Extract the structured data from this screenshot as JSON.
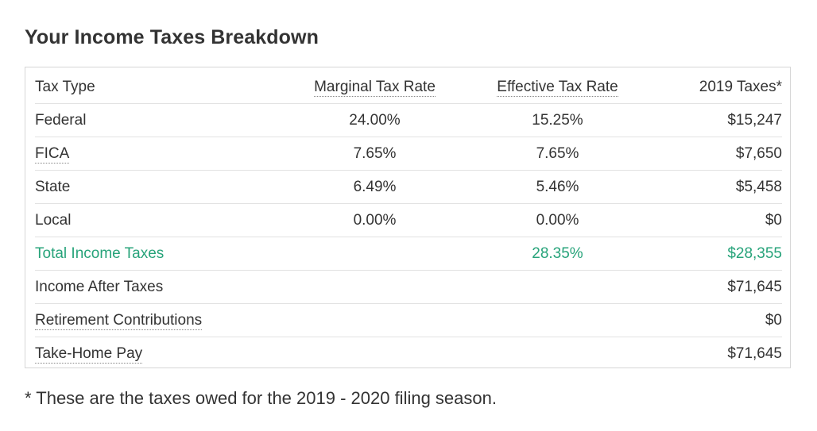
{
  "title": "Your Income Taxes Breakdown",
  "table": {
    "headers": {
      "tax_type": "Tax Type",
      "marginal": "Marginal Tax Rate",
      "effective": "Effective Tax Rate",
      "taxes": "2019 Taxes*"
    },
    "rows": [
      {
        "type": "Federal",
        "marginal": "24.00%",
        "effective": "15.25%",
        "taxes": "$15,247"
      },
      {
        "type": "FICA",
        "marginal": "7.65%",
        "effective": "7.65%",
        "taxes": "$7,650"
      },
      {
        "type": "State",
        "marginal": "6.49%",
        "effective": "5.46%",
        "taxes": "$5,458"
      },
      {
        "type": "Local",
        "marginal": "0.00%",
        "effective": "0.00%",
        "taxes": "$0"
      }
    ],
    "total": {
      "type": "Total Income Taxes",
      "effective": "28.35%",
      "taxes": "$28,355"
    },
    "after_taxes": {
      "type": "Income After Taxes",
      "taxes": "$71,645"
    },
    "retirement": {
      "type": "Retirement Contributions",
      "taxes": "$0"
    },
    "take_home": {
      "type": "Take-Home Pay",
      "taxes": "$71,645"
    }
  },
  "footnote": "* These are the taxes owed for the 2019 - 2020 filing season.",
  "colors": {
    "text": "#333333",
    "accent_green": "#27a37a",
    "border": "#d6d6d6"
  }
}
